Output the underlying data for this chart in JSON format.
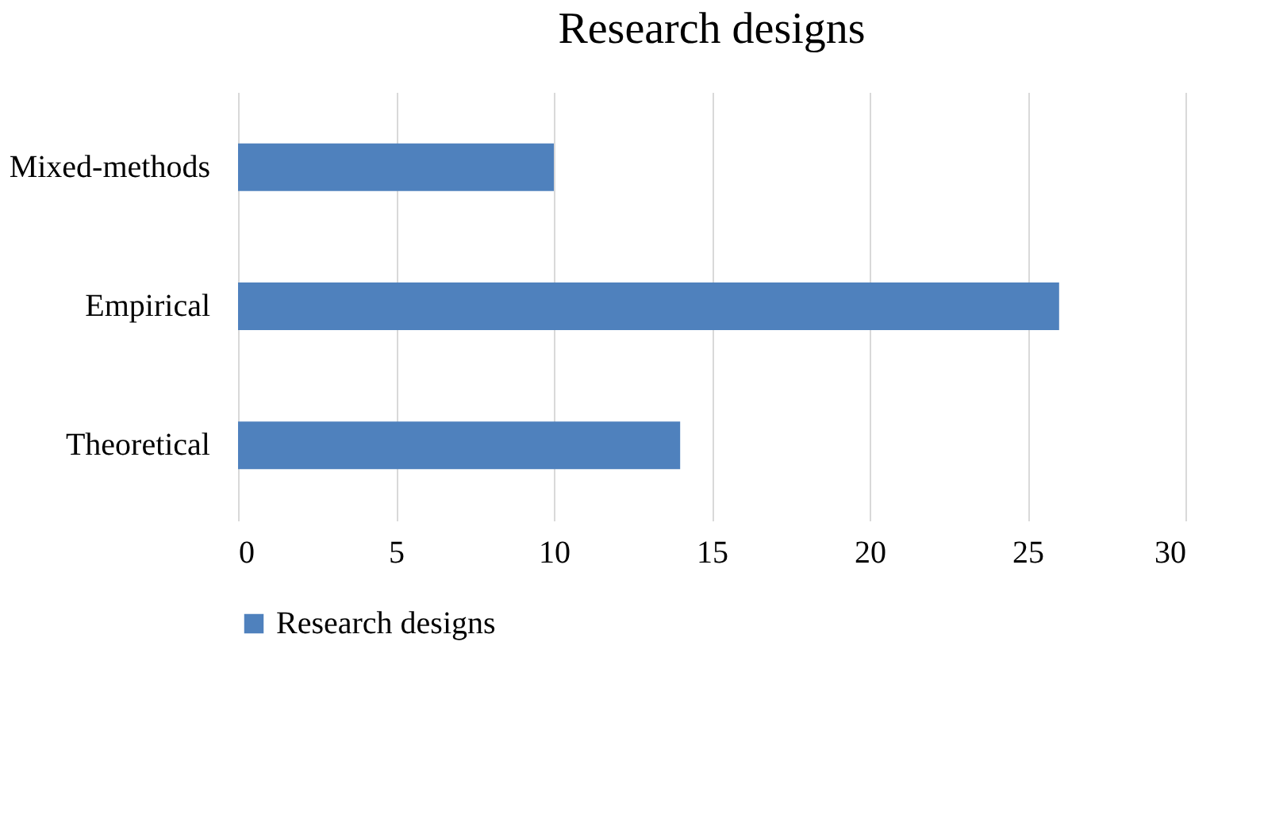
{
  "chart_data": {
    "type": "bar",
    "orientation": "horizontal",
    "title": "Research designs",
    "categories": [
      "Mixed-methods",
      "Empirical",
      "Theoretical"
    ],
    "series": [
      {
        "name": "Research designs",
        "color": "#4f81bd",
        "values": [
          10,
          26,
          14
        ]
      }
    ],
    "xlim": [
      0,
      30
    ],
    "xticks": [
      0,
      5,
      10,
      15,
      20,
      25,
      30
    ],
    "grid": "x",
    "legend": "bottom"
  }
}
